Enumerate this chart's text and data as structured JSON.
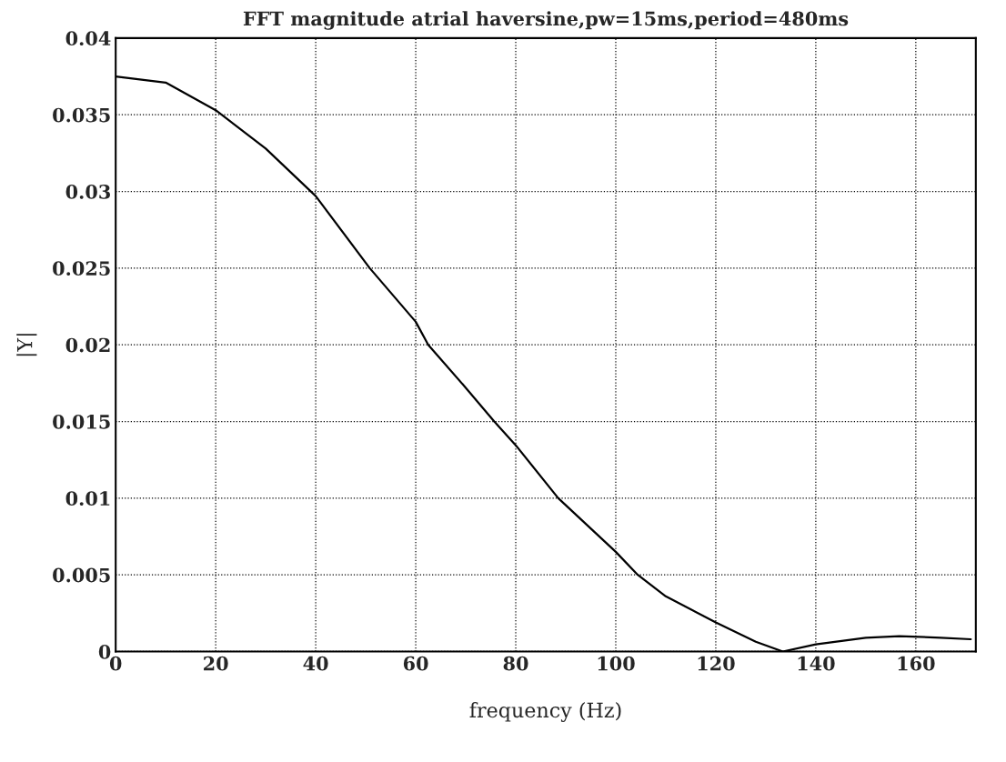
{
  "chart_data": {
    "type": "line",
    "title": "FFT magnitude atrial haversine,pw=15ms,period=480ms",
    "xlabel": "frequency (Hz)",
    "ylabel": "|Y|",
    "series": [
      {
        "color": "#000000",
        "x": [
          0,
          10,
          20,
          30,
          40,
          50.8,
          60,
          62.5,
          70,
          75.7,
          80,
          88.5,
          100,
          104.4,
          110,
          120,
          128,
          133.4,
          140,
          150,
          156.7,
          165,
          171
        ],
        "values": [
          0.0375,
          0.0371,
          0.0353,
          0.0328,
          0.0297,
          0.025,
          0.0215,
          0.02,
          0.0172,
          0.015,
          0.01345,
          0.01,
          0.0065,
          0.005,
          0.0036,
          0.0019,
          0.00064,
          0,
          0.00047,
          0.0009,
          0.001,
          0.0009,
          0.0008
        ]
      }
    ],
    "xlim": [
      0,
      172
    ],
    "xticks": [
      0,
      20,
      40,
      60,
      80,
      100,
      120,
      140,
      160
    ],
    "ylim": [
      0,
      0.04
    ],
    "yticks": [
      0,
      0.005,
      0.01,
      0.015,
      0.02,
      0.025,
      0.03,
      0.035,
      0.04
    ],
    "grid": true,
    "line_style": "solid",
    "marker": "none"
  }
}
